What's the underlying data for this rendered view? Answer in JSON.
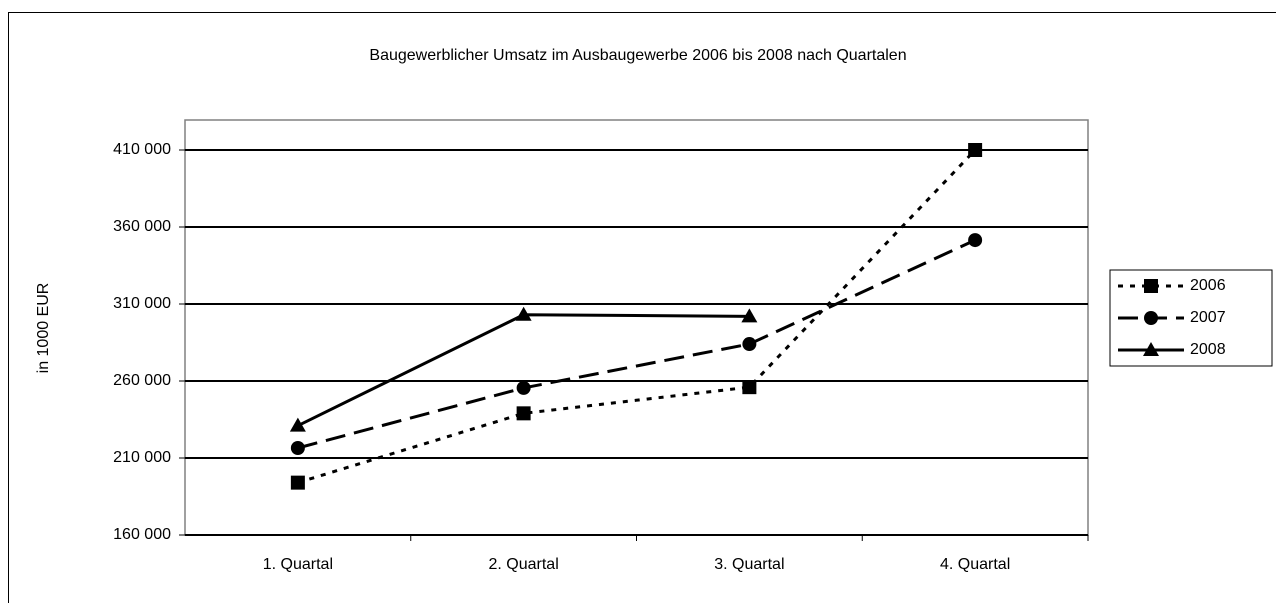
{
  "chart_data": {
    "type": "line",
    "title": "Baugewerblicher Umsatz im Ausbaugewerbe 2006 bis 2008 nach Quartalen",
    "y_label": "in 1000 EUR",
    "categories": [
      "1. Quartal",
      "2. Quartal",
      "3. Quartal",
      "4. Quartal"
    ],
    "series": [
      {
        "name": "2006",
        "color": "#000000",
        "marker": "square",
        "dash": "dotted",
        "values": [
          194000,
          239000,
          256000,
          410000
        ]
      },
      {
        "name": "2007",
        "color": "#000000",
        "marker": "circle",
        "dash": "dashed",
        "values": [
          216500,
          255500,
          284000,
          351500
        ]
      },
      {
        "name": "2008",
        "color": "#000000",
        "marker": "triangle",
        "dash": "solid",
        "values": [
          231000,
          303000,
          302000,
          null
        ]
      }
    ],
    "ylim": [
      160000,
      410000
    ],
    "yticks": [
      {
        "value": 160000,
        "label": "160 000"
      },
      {
        "value": 210000,
        "label": "210 000"
      },
      {
        "value": 260000,
        "label": "260 000"
      },
      {
        "value": 310000,
        "label": "310 000"
      },
      {
        "value": 360000,
        "label": "360 000"
      },
      {
        "value": 410000,
        "label": "410 000"
      }
    ],
    "grid": true,
    "legend": "right"
  }
}
